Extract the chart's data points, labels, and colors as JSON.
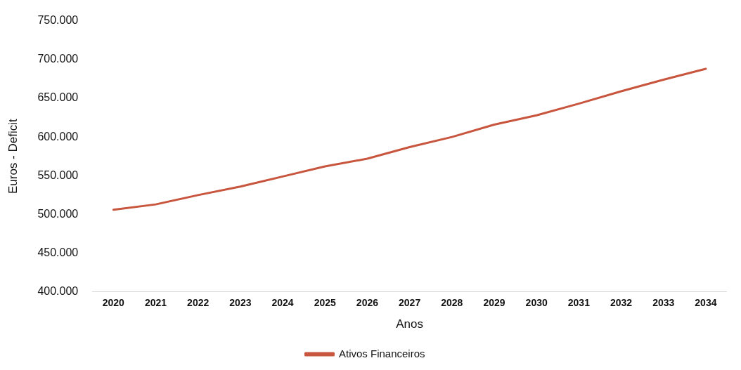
{
  "chart_data": {
    "type": "line",
    "xlabel": "Anos",
    "ylabel": "Euros - Deficit",
    "categories": [
      "2020",
      "2021",
      "2022",
      "2023",
      "2024",
      "2025",
      "2026",
      "2027",
      "2028",
      "2029",
      "2030",
      "2031",
      "2032",
      "2033",
      "2034"
    ],
    "series": [
      {
        "name": "Ativos Financeiros",
        "color": "#c8553d",
        "values": [
          506000,
          513000,
          525000,
          536000,
          549000,
          562000,
          572000,
          587000,
          600000,
          616000,
          628000,
          643000,
          659000,
          674000,
          688000
        ]
      }
    ],
    "ylim": [
      400000,
      750000
    ],
    "yticks": [
      {
        "value": 400000,
        "label": "400.000"
      },
      {
        "value": 450000,
        "label": "450.000"
      },
      {
        "value": 500000,
        "label": "500.000"
      },
      {
        "value": 550000,
        "label": "550.000"
      },
      {
        "value": 600000,
        "label": "600.000"
      },
      {
        "value": 650000,
        "label": "650.000"
      },
      {
        "value": 700000,
        "label": "700.000"
      },
      {
        "value": 750000,
        "label": "750.000"
      }
    ],
    "grid": false,
    "legend": "bottom",
    "marker": "none",
    "line_style": "solid"
  }
}
